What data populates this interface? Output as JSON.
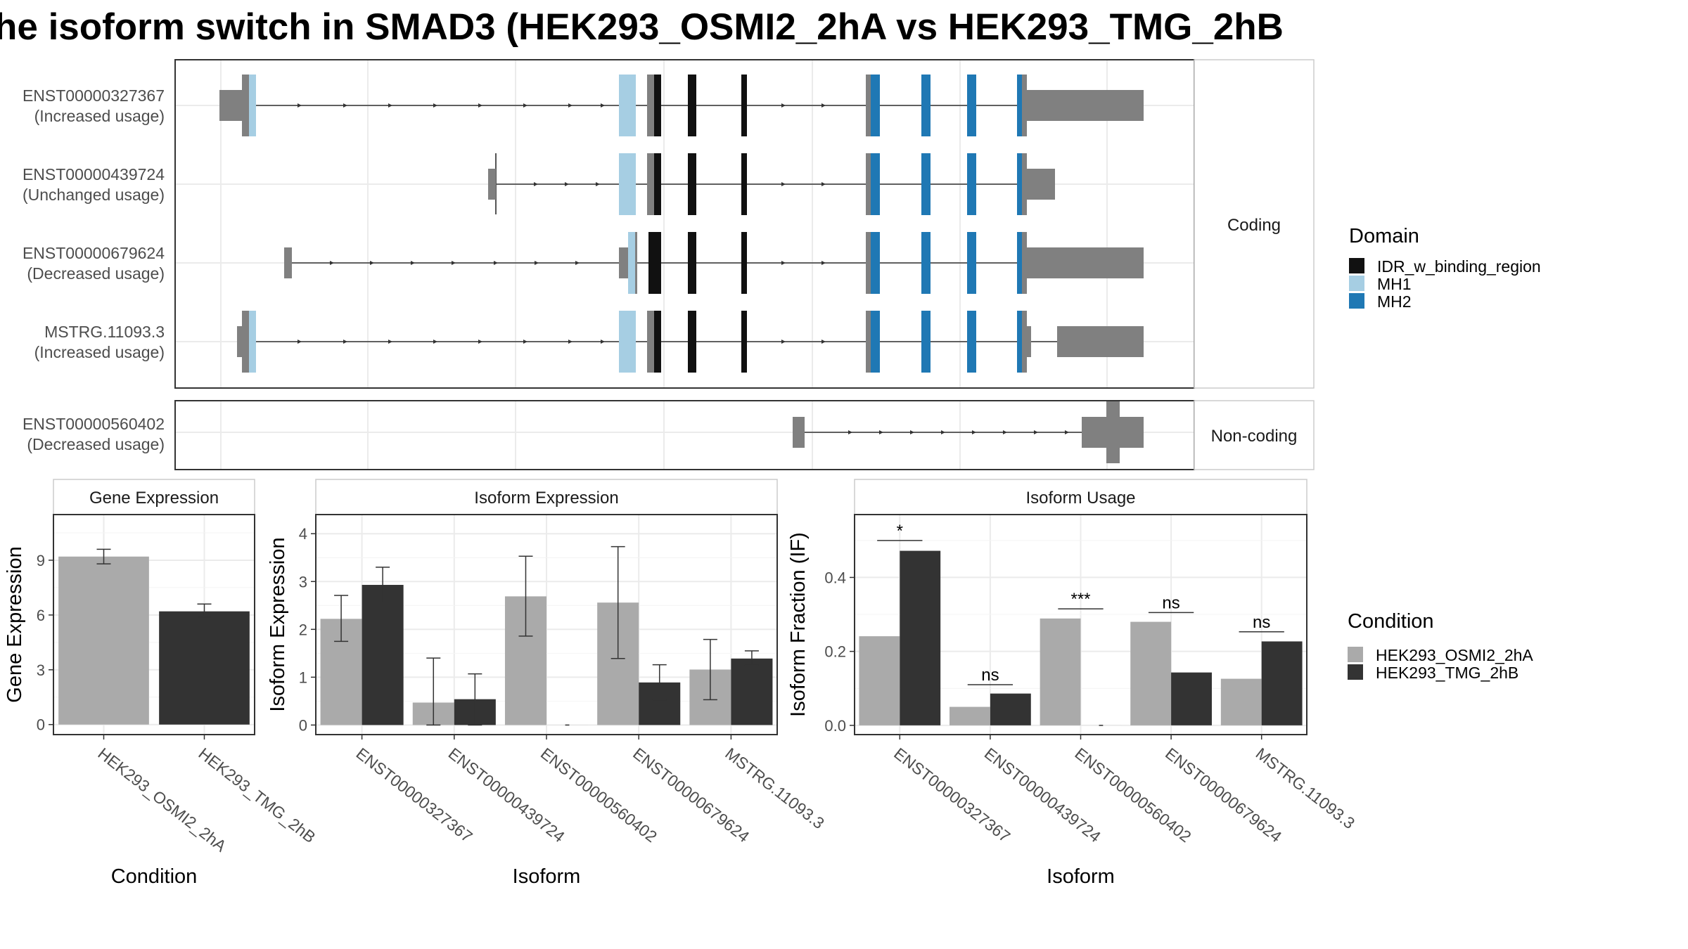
{
  "title": "he isoform switch in SMAD3 (HEK293_OSMI2_2hA vs HEK293_TMG_2hB",
  "colors": {
    "exon_noncds": "#808080",
    "idr": "#111111",
    "mh1": "#a6cee3",
    "mh2": "#1f78b4",
    "cond_a": "#aaaaaa",
    "cond_b": "#333333",
    "grid": "#ebebeb"
  },
  "structure": {
    "facets": [
      "Coding",
      "Non-coding"
    ],
    "transcripts": [
      {
        "id": "ENST00000327367",
        "usage": "(Increased usage)"
      },
      {
        "id": "ENST00000439724",
        "usage": "(Unchanged usage)"
      },
      {
        "id": "ENST00000679624",
        "usage": "(Decreased usage)"
      },
      {
        "id": "MSTRG.11093.3",
        "usage": "(Increased usage)"
      },
      {
        "id": "ENST00000560402",
        "usage": "(Decreased usage)"
      }
    ],
    "legend": {
      "title": "Domain",
      "items": [
        {
          "label": "IDR_w_binding_region",
          "color": "#111111"
        },
        {
          "label": "MH1",
          "color": "#a6cee3"
        },
        {
          "label": "MH2",
          "color": "#1f78b4"
        }
      ]
    }
  },
  "chart_data": [
    {
      "type": "bar",
      "title": "Gene Expression",
      "xlabel": "Condition",
      "ylabel": "Gene Expression",
      "categories": [
        "HEK293_OSMI2_2hA",
        "HEK293_TMG_2hB"
      ],
      "values": [
        9.2,
        6.2
      ],
      "error_low": [
        8.8,
        5.9
      ],
      "error_high": [
        9.6,
        6.6
      ],
      "yticks": [
        0,
        3,
        6,
        9
      ],
      "ylim": [
        -0.55,
        11.5
      ]
    },
    {
      "type": "bar",
      "title": "Isoform Expression",
      "xlabel": "Isoform",
      "ylabel": "Isoform Expression",
      "categories": [
        "ENST00000327367",
        "ENST00000439724",
        "ENST00000560402",
        "ENST00000679624",
        "MSTRG.11093.3"
      ],
      "series": [
        {
          "name": "HEK293_OSMI2_2hA",
          "values": [
            2.22,
            0.47,
            2.69,
            2.56,
            1.16
          ],
          "error_low": [
            1.75,
            0.0,
            1.86,
            1.39,
            0.53
          ],
          "error_high": [
            2.71,
            1.4,
            3.53,
            3.73,
            1.79
          ]
        },
        {
          "name": "HEK293_TMG_2hB",
          "values": [
            2.93,
            0.54,
            0.0,
            0.89,
            1.39
          ],
          "error_low": [
            2.56,
            0.0,
            0.0,
            0.53,
            1.25
          ],
          "error_high": [
            3.3,
            1.07,
            0.0,
            1.26,
            1.55
          ]
        }
      ],
      "yticks": [
        0,
        1,
        2,
        3,
        4
      ],
      "ylim": [
        -0.2,
        4.4
      ]
    },
    {
      "type": "bar",
      "title": "Isoform Usage",
      "xlabel": "Isoform",
      "ylabel": "Isoform Fraction (IF)",
      "categories": [
        "ENST00000327367",
        "ENST00000439724",
        "ENST00000560402",
        "ENST00000679624",
        "MSTRG.11093.3"
      ],
      "series": [
        {
          "name": "HEK293_OSMI2_2hA",
          "values": [
            0.241,
            0.05,
            0.289,
            0.28,
            0.126
          ]
        },
        {
          "name": "HEK293_TMG_2hB",
          "values": [
            0.472,
            0.086,
            0.0,
            0.143,
            0.227
          ]
        }
      ],
      "significance": [
        {
          "label": "*",
          "y": 0.5
        },
        {
          "label": "ns",
          "y": 0.11
        },
        {
          "label": "***",
          "y": 0.315
        },
        {
          "label": "ns",
          "y": 0.305
        },
        {
          "label": "ns",
          "y": 0.253
        }
      ],
      "yticks": [
        0.0,
        0.2,
        0.4
      ],
      "yticklabels": [
        "0.0",
        "0.2",
        "0.4"
      ],
      "ylim": [
        -0.025,
        0.57
      ]
    }
  ],
  "condition_legend": {
    "title": "Condition",
    "items": [
      {
        "label": "HEK293_OSMI2_2hA",
        "color": "#aaaaaa"
      },
      {
        "label": "HEK293_TMG_2hB",
        "color": "#333333"
      }
    ]
  }
}
